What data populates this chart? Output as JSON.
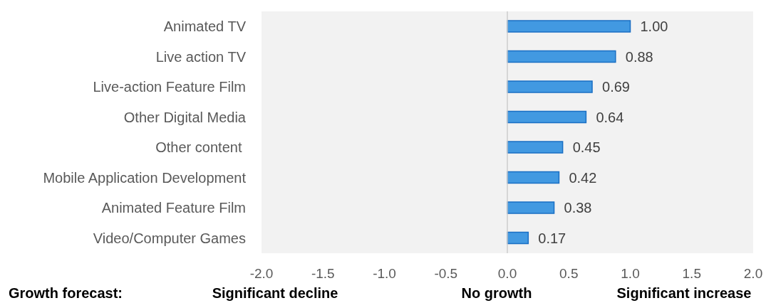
{
  "chart_data": {
    "type": "bar",
    "orientation": "horizontal",
    "categories": [
      "Animated TV",
      "Live action TV",
      "Live-action Feature Film",
      "Other Digital Media",
      "Other content ",
      "Mobile Application Development",
      "Animated Feature Film",
      "Video/Computer Games"
    ],
    "values": [
      1.0,
      0.88,
      0.69,
      0.64,
      0.45,
      0.42,
      0.38,
      0.17
    ],
    "value_labels": [
      "1.00",
      "0.88",
      "0.69",
      "0.64",
      "0.45",
      "0.42",
      "0.38",
      "0.17"
    ],
    "color": "#4299e1",
    "xlim": [
      -2,
      2
    ],
    "xticks": [
      {
        "value": -2,
        "label": "-2.0"
      },
      {
        "value": -1.5,
        "label": "-1.5"
      },
      {
        "value": -1,
        "label": "-1.0"
      },
      {
        "value": -0.5,
        "label": "-0.5"
      },
      {
        "value": 0,
        "label": "0.0"
      },
      {
        "value": 0.5,
        "label": "0.5"
      },
      {
        "value": 1,
        "label": "1.0"
      },
      {
        "value": 1.5,
        "label": "1.5"
      },
      {
        "value": 2,
        "label": "2.0"
      }
    ],
    "ref_lines": [
      {
        "axis": "x",
        "value": 0,
        "color": "#cccccc"
      }
    ],
    "annotations": [
      "Growth forecast:",
      "Significant decline",
      "No growth",
      "Significant increase"
    ]
  }
}
